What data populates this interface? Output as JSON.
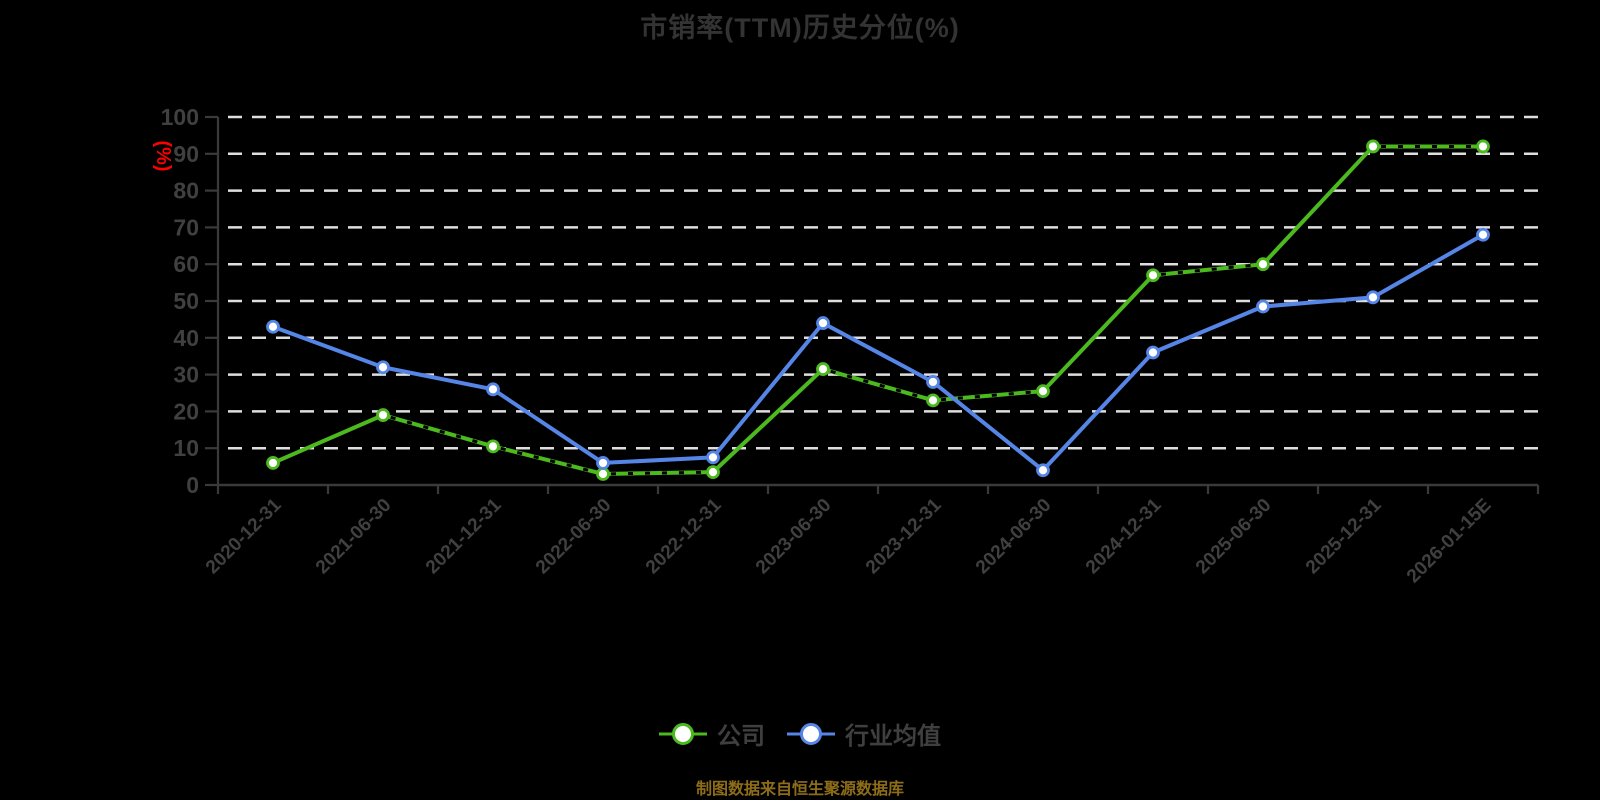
{
  "title": "市销率(TTM)历史分位(%)",
  "footer": {
    "text": "制图数据来自恒生聚源数据库",
    "color": "#8e6d19"
  },
  "colors": {
    "background": "#000000",
    "grid": "#dedede",
    "axis": "#3a3a3a",
    "tick_label": "#404040",
    "title": "#333333",
    "legend_label": "#3f3f3f",
    "y_unit_label": "#ff0000"
  },
  "chart_data": {
    "type": "line",
    "title": "市销率(TTM)历史分位(%)",
    "ylabel": "(%)",
    "xlabel": "",
    "ylim": [
      0,
      100
    ],
    "ytick_step": 10,
    "grid": "horizontal-dashed",
    "legend_position": "bottom-center",
    "categories": [
      "2020-12-31",
      "2021-06-30",
      "2021-12-31",
      "2022-06-30",
      "2022-12-31",
      "2023-06-30",
      "2023-12-31",
      "2024-06-30",
      "2024-12-31",
      "2025-06-30",
      "2025-12-31",
      "2026-01-15E"
    ],
    "series": [
      {
        "name": "公司",
        "color": "#4cb91f",
        "marker": "circle-white-fill",
        "values": [
          6,
          19,
          10.5,
          3,
          3.5,
          31.5,
          23,
          25.5,
          57,
          60,
          92,
          92
        ],
        "dashed_overlay_segments": [
          1,
          2,
          3,
          5,
          6,
          8,
          10
        ]
      },
      {
        "name": "行业均值",
        "color": "#5585e6",
        "marker": "circle-white-fill",
        "values": [
          43,
          32,
          26,
          6,
          7.5,
          44,
          28,
          4,
          36,
          48.5,
          51,
          68
        ]
      }
    ]
  }
}
